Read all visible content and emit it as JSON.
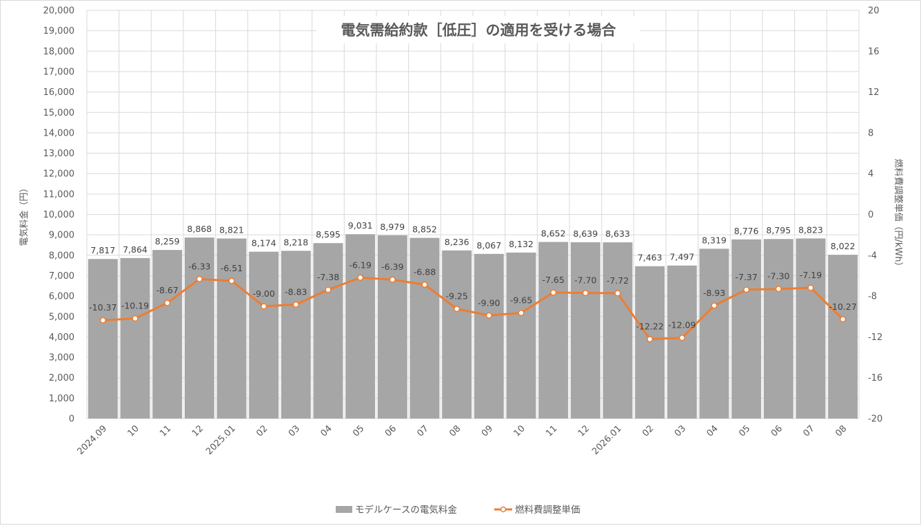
{
  "chart_data": {
    "type": "bar",
    "title": "電気需給約款［低圧］の適用を受ける場合",
    "categories": [
      "2024.09",
      "10",
      "11",
      "12",
      "2025.01",
      "02",
      "03",
      "04",
      "05",
      "06",
      "07",
      "08",
      "09",
      "10",
      "11",
      "12",
      "2026.01",
      "02",
      "03",
      "04",
      "05",
      "06",
      "07",
      "08"
    ],
    "series": [
      {
        "name": "モデルケースの電気料金",
        "type": "bar",
        "axis": "left",
        "color": "#a6a6a6",
        "values": [
          7817,
          7864,
          8259,
          8868,
          8821,
          8174,
          8218,
          8595,
          9031,
          8979,
          8852,
          8236,
          8067,
          8132,
          8652,
          8639,
          8633,
          7463,
          7497,
          8319,
          8776,
          8795,
          8823,
          8022
        ],
        "labels": [
          "7,817",
          "7,864",
          "8,259",
          "8,868",
          "8,821",
          "8,174",
          "8,218",
          "8,595",
          "9,031",
          "8,979",
          "8,852",
          "8,236",
          "8,067",
          "8,132",
          "8,652",
          "8,639",
          "8,633",
          "7,463",
          "7,497",
          "8,319",
          "8,776",
          "8,795",
          "8,823",
          "8,022"
        ]
      },
      {
        "name": "燃料費調整単価",
        "type": "line",
        "axis": "right",
        "color": "#ed7d31",
        "values": [
          -10.37,
          -10.19,
          -8.67,
          -6.33,
          -6.51,
          -9.0,
          -8.83,
          -7.38,
          -6.19,
          -6.39,
          -6.88,
          -9.25,
          -9.9,
          -9.65,
          -7.65,
          -7.7,
          -7.72,
          -12.22,
          -12.09,
          -8.93,
          -7.37,
          -7.3,
          -7.19,
          -10.27
        ],
        "labels": [
          "-10.37",
          "-10.19",
          "-8.67",
          "-6.33",
          "-6.51",
          "-9.00",
          "-8.83",
          "-7.38",
          "-6.19",
          "-6.39",
          "-6.88",
          "-9.25",
          "-9.90",
          "-9.65",
          "-7.65",
          "-7.70",
          "-7.72",
          "-12.22",
          "-12.09",
          "-8.93",
          "-7.37",
          "-7.30",
          "-7.19",
          "-10.27"
        ]
      }
    ],
    "y_left": {
      "label": "電気料金（円）",
      "lim": [
        0,
        20000
      ],
      "ticks": [
        "0",
        "1,000",
        "2,000",
        "3,000",
        "4,000",
        "5,000",
        "6,000",
        "7,000",
        "8,000",
        "9,000",
        "10,000",
        "11,000",
        "12,000",
        "13,000",
        "14,000",
        "15,000",
        "16,000",
        "17,000",
        "18,000",
        "19,000",
        "20,000"
      ]
    },
    "y_right": {
      "label": "燃料費調整単価（円/kWh）",
      "lim": [
        -20,
        20
      ],
      "ticks": [
        "-20",
        "-16",
        "-12",
        "-8",
        "-4",
        "0",
        "4",
        "8",
        "12",
        "16",
        "20"
      ]
    },
    "grid": true,
    "legend_position": "bottom"
  }
}
